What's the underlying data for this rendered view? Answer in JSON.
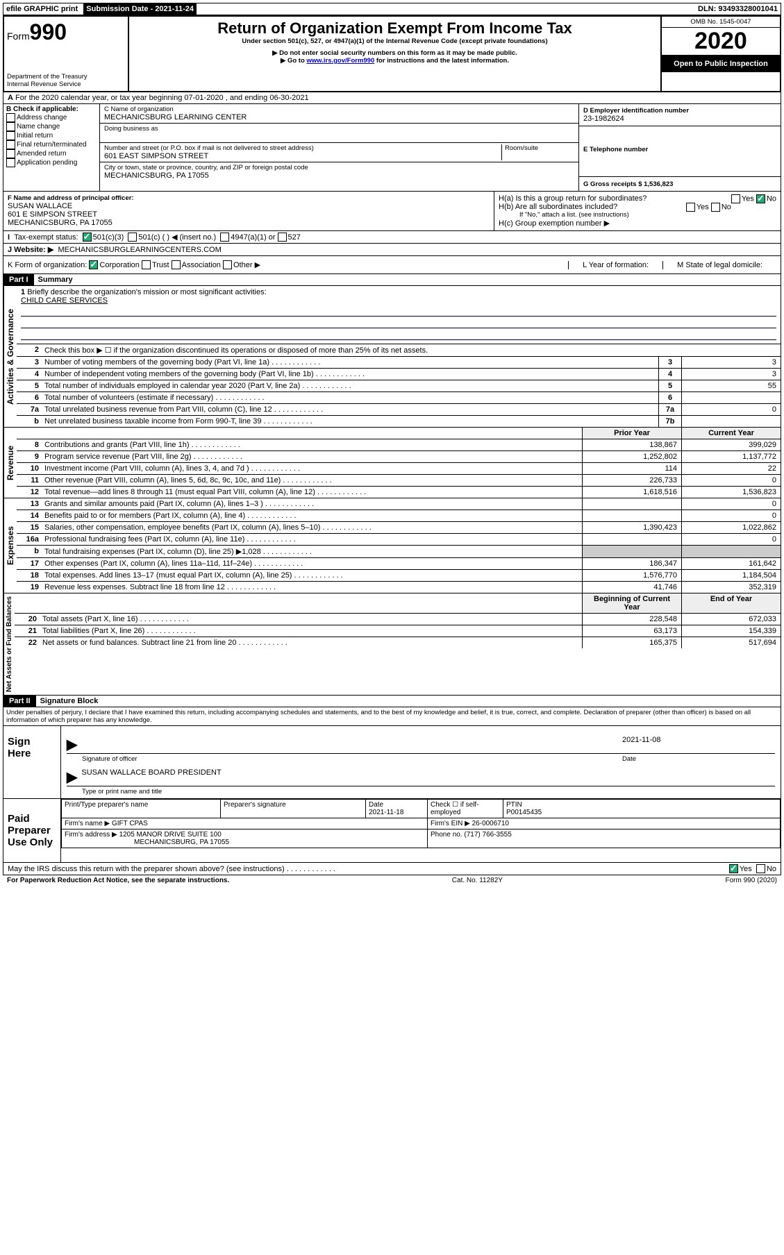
{
  "topbar": {
    "efile": "efile GRAPHIC print",
    "sub_label": "Submission Date - 2021-11-24",
    "dln": "DLN: 93493328001041"
  },
  "header": {
    "form_word": "Form",
    "form_num": "990",
    "dept": "Department of the Treasury\nInternal Revenue Service",
    "title": "Return of Organization Exempt From Income Tax",
    "sub1": "Under section 501(c), 527, or 4947(a)(1) of the Internal Revenue Code (except private foundations)",
    "sub2": "▶ Do not enter social security numbers on this form as it may be made public.",
    "sub3_pre": "▶ Go to ",
    "sub3_link": "www.irs.gov/Form990",
    "sub3_post": " for instructions and the latest information.",
    "omb": "OMB No. 1545-0047",
    "year": "2020",
    "open": "Open to Public Inspection"
  },
  "lineA": "For the 2020 calendar year, or tax year beginning 07-01-2020    , and ending 06-30-2021",
  "checkB": {
    "title": "B Check if applicable:",
    "items": [
      "Address change",
      "Name change",
      "Initial return",
      "Final return/terminated",
      "Amended return",
      "Application pending"
    ]
  },
  "boxC": {
    "label": "C Name of organization",
    "name": "MECHANICSBURG LEARNING CENTER",
    "dba_label": "Doing business as",
    "addr_label": "Number and street (or P.O. box if mail is not delivered to street address)",
    "room_label": "Room/suite",
    "addr": "601 EAST SIMPSON STREET",
    "city_label": "City or town, state or province, country, and ZIP or foreign postal code",
    "city": "MECHANICSBURG, PA  17055"
  },
  "boxD": {
    "label": "D Employer identification number",
    "val": "23-1982624"
  },
  "boxE": {
    "label": "E Telephone number",
    "val": ""
  },
  "boxG": {
    "label": "G Gross receipts $ 1,536,823"
  },
  "boxF": {
    "label": "F  Name and address of principal officer:",
    "name": "SUSAN WALLACE",
    "addr1": "601 E SIMPSON STREET",
    "addr2": "MECHANICSBURG, PA  17055"
  },
  "boxH": {
    "a": "H(a)  Is this a group return for subordinates?",
    "b": "H(b)  Are all subordinates included?",
    "note": "If \"No,\" attach a list. (see instructions)",
    "c": "H(c)  Group exemption number ▶",
    "yes": "Yes",
    "no": "No"
  },
  "taxI": {
    "label": "Tax-exempt status:",
    "o1": "501(c)(3)",
    "o2": "501(c) (   ) ◀ (insert no.)",
    "o3": "4947(a)(1) or",
    "o4": "527"
  },
  "web": {
    "label": "J    Website: ▶",
    "val": "MECHANICSBURGLEARNINGCENTERS.COM"
  },
  "lineK": {
    "label": "K Form of organization:",
    "corp": "Corporation",
    "trust": "Trust",
    "assoc": "Association",
    "other": "Other ▶"
  },
  "lineL": "L Year of formation:",
  "lineM": "M State of legal domicile:",
  "part1": {
    "hdr": "Part I",
    "title": "Summary"
  },
  "q1": {
    "num": "1",
    "text": "Briefly describe the organization's mission or most significant activities:",
    "answer": "CHILD CARE SERVICES"
  },
  "gov": {
    "label_v": "Activities & Governance",
    "rows": [
      {
        "num": "2",
        "desc": "Check this box ▶ ☐  if the organization discontinued its operations or disposed of more than 25% of its net assets."
      },
      {
        "num": "3",
        "desc": "Number of voting members of the governing body (Part VI, line 1a)",
        "box": "3",
        "val": "3"
      },
      {
        "num": "4",
        "desc": "Number of independent voting members of the governing body (Part VI, line 1b)",
        "box": "4",
        "val": "3"
      },
      {
        "num": "5",
        "desc": "Total number of individuals employed in calendar year 2020 (Part V, line 2a)",
        "box": "5",
        "val": "55"
      },
      {
        "num": "6",
        "desc": "Total number of volunteers (estimate if necessary)",
        "box": "6",
        "val": ""
      },
      {
        "num": "7a",
        "desc": "Total unrelated business revenue from Part VIII, column (C), line 12",
        "box": "7a",
        "val": "0"
      },
      {
        "num": "b",
        "desc": "Net unrelated business taxable income from Form 990-T, line 39",
        "box": "7b",
        "val": ""
      }
    ]
  },
  "rev": {
    "label_v": "Revenue",
    "hdr_prior": "Prior Year",
    "hdr_cur": "Current Year",
    "rows": [
      {
        "num": "8",
        "desc": "Contributions and grants (Part VIII, line 1h)",
        "py": "138,867",
        "cy": "399,029"
      },
      {
        "num": "9",
        "desc": "Program service revenue (Part VIII, line 2g)",
        "py": "1,252,802",
        "cy": "1,137,772"
      },
      {
        "num": "10",
        "desc": "Investment income (Part VIII, column (A), lines 3, 4, and 7d )",
        "py": "114",
        "cy": "22"
      },
      {
        "num": "11",
        "desc": "Other revenue (Part VIII, column (A), lines 5, 6d, 8c, 9c, 10c, and 11e)",
        "py": "226,733",
        "cy": "0"
      },
      {
        "num": "12",
        "desc": "Total revenue—add lines 8 through 11 (must equal Part VIII, column (A), line 12)",
        "py": "1,618,516",
        "cy": "1,536,823"
      }
    ]
  },
  "exp": {
    "label_v": "Expenses",
    "rows": [
      {
        "num": "13",
        "desc": "Grants and similar amounts paid (Part IX, column (A), lines 1–3 )",
        "py": "",
        "cy": "0"
      },
      {
        "num": "14",
        "desc": "Benefits paid to or for members (Part IX, column (A), line 4)",
        "py": "",
        "cy": "0"
      },
      {
        "num": "15",
        "desc": "Salaries, other compensation, employee benefits (Part IX, column (A), lines 5–10)",
        "py": "1,390,423",
        "cy": "1,022,862"
      },
      {
        "num": "16a",
        "desc": "Professional fundraising fees (Part IX, column (A), line 11e)",
        "py": "",
        "cy": "0"
      },
      {
        "num": "b",
        "desc": "Total fundraising expenses (Part IX, column (D), line 25) ▶1,028",
        "py": "shade",
        "cy": "shade"
      },
      {
        "num": "17",
        "desc": "Other expenses (Part IX, column (A), lines 11a–11d, 11f–24e)",
        "py": "186,347",
        "cy": "161,642"
      },
      {
        "num": "18",
        "desc": "Total expenses. Add lines 13–17 (must equal Part IX, column (A), line 25)",
        "py": "1,576,770",
        "cy": "1,184,504"
      },
      {
        "num": "19",
        "desc": "Revenue less expenses. Subtract line 18 from line 12",
        "py": "41,746",
        "cy": "352,319"
      }
    ]
  },
  "net": {
    "label_v": "Net Assets or Fund Balances",
    "hdr_beg": "Beginning of Current Year",
    "hdr_end": "End of Year",
    "rows": [
      {
        "num": "20",
        "desc": "Total assets (Part X, line 16)",
        "py": "228,548",
        "cy": "672,033"
      },
      {
        "num": "21",
        "desc": "Total liabilities (Part X, line 26)",
        "py": "63,173",
        "cy": "154,339"
      },
      {
        "num": "22",
        "desc": "Net assets or fund balances. Subtract line 21 from line 20",
        "py": "165,375",
        "cy": "517,694"
      }
    ]
  },
  "part2": {
    "hdr": "Part II",
    "title": "Signature Block"
  },
  "perjury": "Under penalties of perjury, I declare that I have examined this return, including accompanying schedules and statements, and to the best of my knowledge and belief, it is true, correct, and complete. Declaration of preparer (other than officer) is based on all information of which preparer has any knowledge.",
  "sign": {
    "left": "Sign Here",
    "sig_label": "Signature of officer",
    "date": "2021-11-08",
    "date_label": "Date",
    "name": "SUSAN WALLACE  BOARD PRESIDENT",
    "name_label": "Type or print name and title"
  },
  "prep": {
    "left": "Paid Preparer Use Only",
    "h1": "Print/Type preparer's name",
    "h2": "Preparer's signature",
    "h3": "Date",
    "h3v": "2021-11-18",
    "h4": "Check ☐ if self-employed",
    "h5": "PTIN",
    "h5v": "P00145435",
    "firm_label": "Firm's name    ▶",
    "firm": "GIFT CPAS",
    "ein_label": "Firm's EIN ▶",
    "ein": "26-0006710",
    "addr_label": "Firm's address ▶",
    "addr1": "1205 MANOR DRIVE SUITE 100",
    "addr2": "MECHANICSBURG, PA  17055",
    "phone_label": "Phone no.",
    "phone": "(717) 766-3555"
  },
  "discuss": {
    "q": "May the IRS discuss this return with the preparer shown above? (see instructions)",
    "yes": "Yes",
    "no": "No"
  },
  "footer": {
    "left": "For Paperwork Reduction Act Notice, see the separate instructions.",
    "mid": "Cat. No. 11282Y",
    "right": "Form 990 (2020)"
  }
}
